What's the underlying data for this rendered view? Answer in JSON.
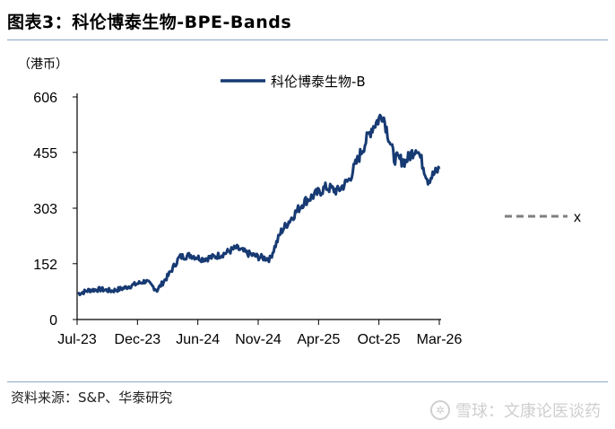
{
  "figure": {
    "label": "图表3：",
    "title": "科伦博泰生物-BPE-Bands",
    "source": "资料来源：S&P、华泰研究",
    "watermark": "雪球：文康论医谈药"
  },
  "colors": {
    "series_main": "#173a73",
    "series_x": "#7f7f7f",
    "rule": "#8aa7c4",
    "axis": "#000000"
  },
  "chart_data": {
    "type": "line",
    "title": "",
    "unit_label": "（港币）",
    "xlabel": "",
    "ylabel": "",
    "ylim": [
      0,
      606
    ],
    "y_ticks": [
      0,
      152,
      303,
      455,
      606
    ],
    "y_tick_labels": [
      "0",
      "152",
      "303",
      "455",
      "606"
    ],
    "x_ticks": [
      "Jul-23",
      "Dec-23",
      "Jun-24",
      "Nov-24",
      "Apr-25",
      "Oct-25",
      "Mar-26"
    ],
    "legend_position": "top",
    "grid": false,
    "series": [
      {
        "name": "科伦博泰生物-B",
        "x": [
          "2023-07",
          "2023-08",
          "2023-09",
          "2023-10",
          "2023-11",
          "2023-12",
          "2024-01",
          "2024-02",
          "2024-03",
          "2024-04",
          "2024-05",
          "2024-06",
          "2024-07",
          "2024-08",
          "2024-09",
          "2024-10",
          "2024-11",
          "2024-12",
          "2025-01",
          "2025-02",
          "2025-03",
          "2025-04",
          "2025-05",
          "2025-06",
          "2025-07",
          "2025-08",
          "2025-09",
          "2025-10",
          "2025-11",
          "2025-12",
          "2026-01",
          "2026-02",
          "2026-03"
        ],
        "values": [
          70,
          80,
          82,
          78,
          85,
          95,
          105,
          80,
          120,
          170,
          175,
          165,
          170,
          180,
          195,
          180,
          170,
          165,
          240,
          280,
          320,
          340,
          360,
          350,
          380,
          450,
          520,
          560,
          440,
          430,
          470,
          380,
          410
        ]
      },
      {
        "name": "x",
        "values": []
      }
    ]
  }
}
